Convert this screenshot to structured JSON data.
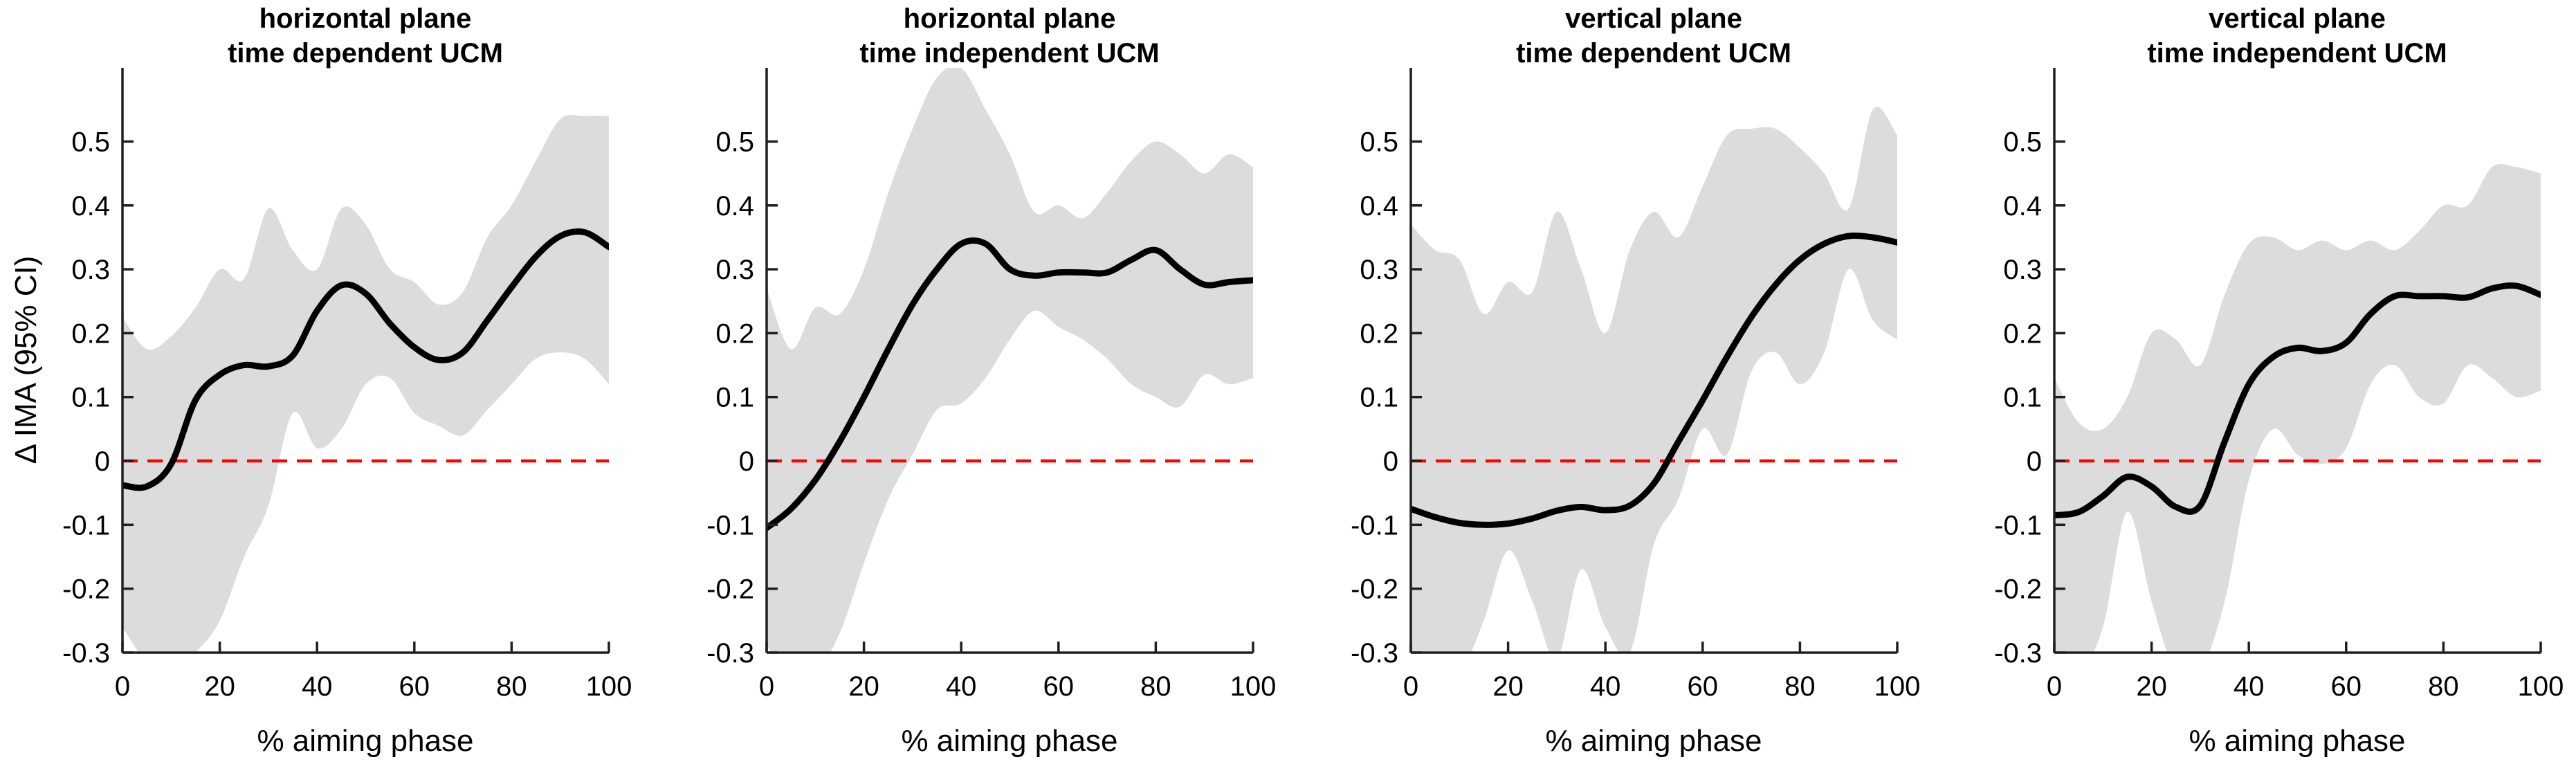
{
  "figure": {
    "background": "#ffffff",
    "ylabel": "Δ IMA (95% CI)",
    "xlabel": "% aiming phase"
  },
  "colors": {
    "mean_line": "#000000",
    "ci_band": "#dcdcdc",
    "zero_line": "#ff0000",
    "axis": "#1f1f1f",
    "text": "#000000"
  },
  "chart_data": [
    {
      "type": "line",
      "title_line1": "horizontal plane",
      "title_line2": "time dependent UCM",
      "xlabel": "% aiming phase",
      "ylabel": "Δ IMA (95% CI)",
      "x": [
        0,
        5,
        10,
        15,
        20,
        25,
        30,
        35,
        40,
        45,
        50,
        55,
        60,
        65,
        70,
        75,
        80,
        85,
        90,
        95,
        100
      ],
      "series": [
        {
          "name": "mean Δ IMA",
          "values": [
            -0.038,
            -0.04,
            -0.005,
            0.095,
            0.135,
            0.15,
            0.148,
            0.165,
            0.235,
            0.275,
            0.262,
            0.215,
            0.178,
            0.158,
            0.17,
            0.22,
            0.272,
            0.32,
            0.352,
            0.358,
            0.335
          ]
        },
        {
          "name": "95% CI upper",
          "values": [
            0.225,
            0.175,
            0.195,
            0.24,
            0.3,
            0.285,
            0.395,
            0.33,
            0.3,
            0.395,
            0.37,
            0.3,
            0.28,
            0.245,
            0.265,
            0.35,
            0.4,
            0.47,
            0.535,
            0.54,
            0.54
          ]
        },
        {
          "name": "95% CI lower",
          "values": [
            -0.26,
            -0.315,
            -0.33,
            -0.3,
            -0.25,
            -0.15,
            -0.07,
            0.075,
            0.02,
            0.05,
            0.12,
            0.13,
            0.075,
            0.055,
            0.04,
            0.08,
            0.12,
            0.16,
            0.17,
            0.16,
            0.12
          ]
        }
      ],
      "zero_line": 0,
      "xlim": [
        0,
        100
      ],
      "ylim": [
        -0.3,
        0.615
      ],
      "xticks": [
        0,
        20,
        40,
        60,
        80,
        100
      ],
      "yticks": [
        -0.3,
        -0.2,
        -0.1,
        0,
        0.1,
        0.2,
        0.3,
        0.4,
        0.5
      ],
      "grid": false,
      "legend": false
    },
    {
      "type": "line",
      "title_line1": "horizontal plane",
      "title_line2": "time independent UCM",
      "xlabel": "% aiming phase",
      "x": [
        0,
        5,
        10,
        15,
        20,
        25,
        30,
        35,
        40,
        45,
        50,
        55,
        60,
        65,
        70,
        75,
        80,
        85,
        90,
        95,
        100
      ],
      "series": [
        {
          "name": "mean Δ IMA",
          "values": [
            -0.105,
            -0.075,
            -0.03,
            0.03,
            0.1,
            0.175,
            0.245,
            0.3,
            0.34,
            0.34,
            0.3,
            0.29,
            0.295,
            0.295,
            0.295,
            0.315,
            0.33,
            0.3,
            0.276,
            0.28,
            0.283
          ]
        },
        {
          "name": "95% CI upper",
          "values": [
            0.27,
            0.175,
            0.24,
            0.23,
            0.3,
            0.42,
            0.52,
            0.6,
            0.615,
            0.55,
            0.48,
            0.39,
            0.4,
            0.38,
            0.42,
            0.47,
            0.5,
            0.48,
            0.45,
            0.48,
            0.46
          ]
        },
        {
          "name": "95% CI lower",
          "values": [
            -0.29,
            -0.33,
            -0.33,
            -0.27,
            -0.16,
            -0.06,
            0.01,
            0.08,
            0.09,
            0.13,
            0.19,
            0.235,
            0.21,
            0.19,
            0.16,
            0.12,
            0.1,
            0.085,
            0.135,
            0.12,
            0.13
          ]
        }
      ],
      "zero_line": 0,
      "xlim": [
        0,
        100
      ],
      "ylim": [
        -0.3,
        0.615
      ],
      "xticks": [
        0,
        20,
        40,
        60,
        80,
        100
      ],
      "yticks": [
        -0.3,
        -0.2,
        -0.1,
        0,
        0.1,
        0.2,
        0.3,
        0.4,
        0.5
      ],
      "grid": false,
      "legend": false
    },
    {
      "type": "line",
      "title_line1": "vertical plane",
      "title_line2": "time dependent UCM",
      "xlabel": "% aiming phase",
      "x": [
        0,
        5,
        10,
        15,
        20,
        25,
        30,
        35,
        40,
        45,
        50,
        55,
        60,
        65,
        70,
        75,
        80,
        85,
        90,
        95,
        100
      ],
      "series": [
        {
          "name": "mean Δ IMA",
          "values": [
            -0.075,
            -0.088,
            -0.097,
            -0.1,
            -0.098,
            -0.09,
            -0.078,
            -0.072,
            -0.077,
            -0.07,
            -0.035,
            0.03,
            0.095,
            0.163,
            0.225,
            0.276,
            0.315,
            0.34,
            0.352,
            0.35,
            0.342
          ]
        },
        {
          "name": "95% CI upper",
          "values": [
            0.37,
            0.33,
            0.315,
            0.23,
            0.28,
            0.265,
            0.39,
            0.3,
            0.2,
            0.33,
            0.39,
            0.35,
            0.43,
            0.51,
            0.52,
            0.52,
            0.49,
            0.45,
            0.395,
            0.55,
            0.51
          ]
        },
        {
          "name": "95% CI lower",
          "values": [
            -0.33,
            -0.3,
            -0.33,
            -0.25,
            -0.14,
            -0.22,
            -0.31,
            -0.17,
            -0.26,
            -0.3,
            -0.13,
            -0.06,
            0.05,
            0.01,
            0.14,
            0.17,
            0.12,
            0.17,
            0.3,
            0.22,
            0.19
          ]
        }
      ],
      "zero_line": 0,
      "xlim": [
        0,
        100
      ],
      "ylim": [
        -0.3,
        0.615
      ],
      "xticks": [
        0,
        20,
        40,
        60,
        80,
        100
      ],
      "yticks": [
        -0.3,
        -0.2,
        -0.1,
        0,
        0.1,
        0.2,
        0.3,
        0.4,
        0.5
      ],
      "grid": false,
      "legend": false
    },
    {
      "type": "line",
      "title_line1": "vertical plane",
      "title_line2": "time independent UCM",
      "xlabel": "% aiming phase",
      "x": [
        0,
        5,
        10,
        15,
        20,
        25,
        30,
        35,
        40,
        45,
        50,
        55,
        60,
        65,
        70,
        75,
        80,
        85,
        90,
        95,
        100
      ],
      "series": [
        {
          "name": "mean Δ IMA",
          "values": [
            -0.085,
            -0.08,
            -0.055,
            -0.025,
            -0.04,
            -0.072,
            -0.07,
            0.03,
            0.12,
            0.163,
            0.177,
            0.172,
            0.185,
            0.23,
            0.258,
            0.258,
            0.258,
            0.256,
            0.27,
            0.274,
            0.26
          ]
        },
        {
          "name": "95% CI upper",
          "values": [
            0.13,
            0.06,
            0.05,
            0.1,
            0.2,
            0.19,
            0.15,
            0.26,
            0.34,
            0.35,
            0.33,
            0.345,
            0.33,
            0.345,
            0.33,
            0.36,
            0.4,
            0.4,
            0.46,
            0.46,
            0.45
          ]
        },
        {
          "name": "95% CI lower",
          "values": [
            -0.3,
            -0.33,
            -0.26,
            -0.08,
            -0.22,
            -0.33,
            -0.33,
            -0.22,
            -0.03,
            0.05,
            0.01,
            -0.005,
            0.02,
            0.12,
            0.15,
            0.1,
            0.09,
            0.15,
            0.13,
            0.1,
            0.11
          ]
        }
      ],
      "zero_line": 0,
      "xlim": [
        0,
        100
      ],
      "ylim": [
        -0.3,
        0.615
      ],
      "xticks": [
        0,
        20,
        40,
        60,
        80,
        100
      ],
      "yticks": [
        -0.3,
        -0.2,
        -0.1,
        0,
        0.1,
        0.2,
        0.3,
        0.4,
        0.5
      ],
      "grid": false,
      "legend": false
    }
  ]
}
